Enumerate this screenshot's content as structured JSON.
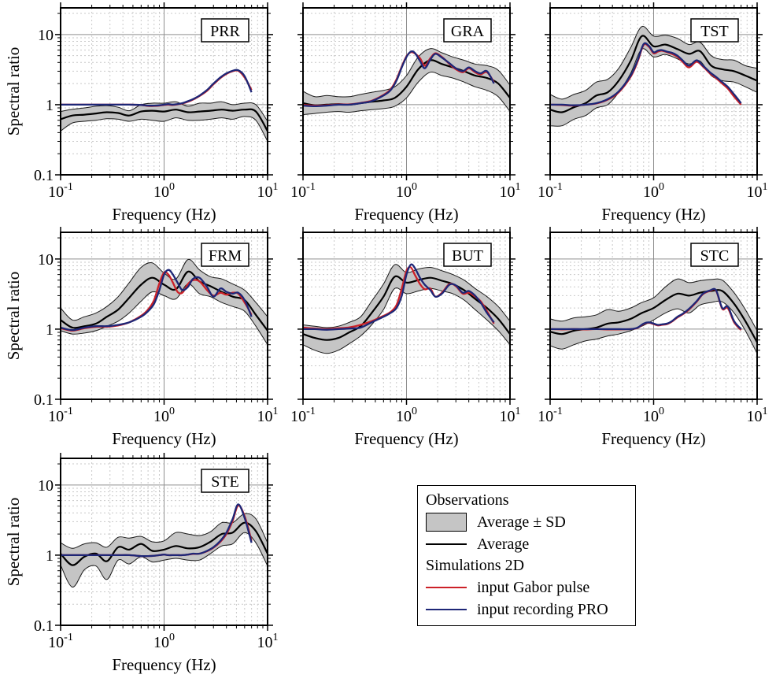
{
  "legend": {
    "sections": [
      {
        "header": "Observations",
        "items": [
          {
            "swatch": "band",
            "label": "Average ± SD"
          },
          {
            "swatch": "line-black",
            "label": "Average"
          }
        ]
      },
      {
        "header": "Simulations 2D",
        "items": [
          {
            "swatch": "line-red",
            "label": "input Gabor pulse"
          },
          {
            "swatch": "line-blue",
            "label": "input recording PRO"
          }
        ]
      }
    ]
  },
  "chart_data": {
    "type": "line",
    "subtype": "log-log spectral ratio grid, 7 subplots",
    "axes": {
      "xlabel": "Frequency (Hz)",
      "ylabel": "Spectral ratio",
      "xlim": [
        0.1,
        10
      ],
      "ylim": [
        0.1,
        24
      ],
      "grid": true,
      "x_ticks": [
        {
          "base": "10",
          "exp": "-1",
          "value": 0.1
        },
        {
          "base": "10",
          "exp": "0",
          "value": 1
        },
        {
          "base": "10",
          "exp": "1",
          "value": 10
        }
      ],
      "y_ticks": [
        {
          "label": "10",
          "value": 10
        },
        {
          "label": "1",
          "value": 1
        },
        {
          "label": "0.1",
          "value": 0.1
        }
      ]
    },
    "colors": {
      "band_fill": "#c5c5c5",
      "band_edge": "#1a1a1a",
      "average": "#000000",
      "gabor": "#cc2128",
      "pro": "#1e2777",
      "grid_major": "#8f8f8f",
      "grid_minor": "#c9c9c9",
      "frame": "#000000",
      "label_box_bg": "#ffffff"
    },
    "legend_position": "bottom-right cell of 3x3 grid",
    "obs_f": [
      0.1,
      0.13,
      0.17,
      0.22,
      0.28,
      0.36,
      0.46,
      0.6,
      0.77,
      1.0,
      1.3,
      1.7,
      2.2,
      2.8,
      3.6,
      4.6,
      6.0,
      7.7,
      10
    ],
    "sim_f": [
      0.1,
      0.13,
      0.17,
      0.22,
      0.28,
      0.36,
      0.46,
      0.6,
      0.7,
      0.8,
      0.9,
      1.0,
      1.1,
      1.2,
      1.35,
      1.5,
      1.7,
      1.9,
      2.2,
      2.6,
      3.0,
      3.5,
      4.0,
      4.6,
      5.2,
      6.0,
      7.0
    ],
    "stations": [
      {
        "id": "PRR",
        "row": 0,
        "col": 0,
        "avg": [
          0.62,
          0.7,
          0.72,
          0.75,
          0.78,
          0.76,
          0.7,
          0.8,
          0.82,
          0.8,
          0.85,
          0.78,
          0.8,
          0.82,
          0.85,
          0.82,
          0.85,
          0.8,
          0.42
        ],
        "hi": [
          0.8,
          0.86,
          0.9,
          0.95,
          0.97,
          0.92,
          0.82,
          1.0,
          1.05,
          1.05,
          1.1,
          0.95,
          1.05,
          1.05,
          1.1,
          1.0,
          1.05,
          1.0,
          0.58
        ],
        "lo": [
          0.42,
          0.55,
          0.58,
          0.6,
          0.63,
          0.62,
          0.58,
          0.62,
          0.6,
          0.58,
          0.65,
          0.6,
          0.6,
          0.62,
          0.65,
          0.62,
          0.68,
          0.6,
          0.3
        ],
        "pro": [
          1.0,
          1.0,
          1.0,
          1.0,
          1.0,
          1.0,
          1.0,
          0.99,
          0.97,
          0.97,
          0.98,
          1.0,
          1.02,
          1.0,
          1.02,
          1.05,
          1.12,
          1.2,
          1.35,
          1.62,
          2.0,
          2.45,
          2.8,
          3.05,
          3.1,
          2.55,
          1.5
        ],
        "gabor": [
          1.0,
          1.0,
          1.0,
          1.0,
          1.0,
          1.0,
          1.0,
          0.99,
          0.96,
          0.96,
          0.97,
          0.99,
          1.0,
          0.99,
          1.01,
          1.04,
          1.1,
          1.18,
          1.33,
          1.58,
          1.95,
          2.4,
          2.75,
          3.0,
          3.05,
          2.45,
          1.62
        ]
      },
      {
        "id": "GRA",
        "row": 0,
        "col": 1,
        "avg": [
          1.05,
          0.98,
          1.0,
          1.02,
          1.0,
          1.05,
          1.1,
          1.15,
          1.25,
          1.8,
          3.2,
          4.3,
          3.8,
          3.4,
          3.0,
          2.6,
          2.4,
          2.0,
          1.25
        ],
        "hi": [
          1.55,
          1.3,
          1.35,
          1.3,
          1.3,
          1.4,
          1.5,
          1.6,
          1.8,
          2.6,
          4.8,
          6.3,
          5.5,
          4.8,
          4.3,
          3.8,
          3.6,
          3.1,
          1.9
        ],
        "lo": [
          0.72,
          0.75,
          0.78,
          0.8,
          0.78,
          0.82,
          0.85,
          0.88,
          0.95,
          1.25,
          2.1,
          2.9,
          2.6,
          2.4,
          2.1,
          1.8,
          1.6,
          1.3,
          0.8
        ],
        "pro": [
          0.97,
          0.95,
          0.97,
          1.0,
          1.0,
          1.05,
          1.12,
          1.35,
          1.6,
          2.2,
          3.4,
          4.8,
          5.7,
          5.5,
          4.2,
          3.3,
          4.4,
          5.3,
          4.7,
          3.9,
          3.3,
          3.0,
          3.4,
          3.0,
          2.8,
          3.0,
          2.0
        ],
        "gabor": [
          0.99,
          0.97,
          0.98,
          1.01,
          1.01,
          1.06,
          1.14,
          1.38,
          1.65,
          2.3,
          3.5,
          4.9,
          5.6,
          5.4,
          4.6,
          3.6,
          4.6,
          5.4,
          4.8,
          3.8,
          3.2,
          2.9,
          3.3,
          2.9,
          2.7,
          2.9,
          2.1
        ]
      },
      {
        "id": "TST",
        "row": 0,
        "col": 2,
        "avg": [
          0.85,
          0.78,
          0.92,
          1.05,
          1.35,
          1.5,
          2.2,
          4.2,
          9.5,
          6.8,
          7.2,
          6.2,
          5.3,
          5.8,
          3.6,
          3.2,
          3.0,
          2.6,
          2.2
        ],
        "hi": [
          1.4,
          1.2,
          1.4,
          1.6,
          2.1,
          2.3,
          3.3,
          6.5,
          13.0,
          9.5,
          9.8,
          8.8,
          7.2,
          7.8,
          5.0,
          4.4,
          4.3,
          3.6,
          3.3
        ],
        "lo": [
          0.5,
          0.5,
          0.62,
          0.7,
          0.9,
          1.0,
          1.5,
          2.8,
          6.2,
          4.8,
          5.2,
          4.5,
          3.8,
          4.2,
          2.6,
          2.2,
          2.1,
          1.8,
          1.5
        ],
        "pro": [
          1.0,
          1.0,
          0.98,
          1.0,
          1.05,
          1.2,
          1.55,
          2.6,
          4.3,
          7.3,
          6.9,
          5.6,
          5.9,
          6.0,
          5.7,
          5.5,
          5.0,
          4.3,
          3.6,
          4.3,
          3.6,
          2.9,
          2.5,
          2.1,
          1.8,
          1.4,
          1.05
        ],
        "gabor": [
          1.0,
          0.99,
          0.97,
          1.0,
          1.04,
          1.18,
          1.5,
          2.5,
          4.1,
          7.1,
          6.7,
          5.4,
          5.7,
          5.9,
          5.6,
          5.3,
          4.8,
          4.1,
          3.4,
          4.1,
          3.5,
          2.8,
          2.4,
          2.0,
          1.7,
          1.3,
          1.0
        ]
      },
      {
        "id": "FRM",
        "row": 1,
        "col": 0,
        "avg": [
          1.35,
          1.05,
          1.1,
          1.2,
          1.5,
          1.9,
          2.8,
          4.3,
          5.4,
          4.3,
          3.7,
          6.6,
          4.8,
          4.1,
          3.4,
          2.9,
          2.6,
          1.6,
          0.95
        ],
        "hi": [
          2.0,
          1.35,
          1.5,
          1.7,
          2.1,
          2.9,
          4.6,
          7.6,
          8.8,
          6.3,
          5.2,
          9.8,
          7.0,
          5.6,
          5.2,
          4.4,
          3.6,
          2.4,
          1.5
        ],
        "lo": [
          0.95,
          0.85,
          0.88,
          0.95,
          1.1,
          1.3,
          1.7,
          2.5,
          3.4,
          3.0,
          2.7,
          4.4,
          3.2,
          2.9,
          2.4,
          2.1,
          1.8,
          1.1,
          0.6
        ],
        "pro": [
          1.05,
          0.97,
          1.05,
          1.1,
          1.1,
          1.15,
          1.25,
          1.5,
          1.8,
          2.3,
          3.6,
          6.0,
          7.0,
          6.2,
          4.6,
          3.6,
          4.0,
          5.2,
          5.4,
          4.0,
          2.9,
          3.8,
          3.4,
          3.2,
          3.3,
          2.6,
          1.5
        ],
        "gabor": [
          1.03,
          0.95,
          1.03,
          1.08,
          1.08,
          1.13,
          1.25,
          1.55,
          1.9,
          2.6,
          4.5,
          6.4,
          6.0,
          4.8,
          3.4,
          3.3,
          4.4,
          5.0,
          4.8,
          3.6,
          3.0,
          3.3,
          3.1,
          3.3,
          3.2,
          2.4,
          1.6
        ]
      },
      {
        "id": "BUT",
        "row": 1,
        "col": 1,
        "avg": [
          0.85,
          0.75,
          0.7,
          0.75,
          0.9,
          1.1,
          1.7,
          2.9,
          5.6,
          4.6,
          5.0,
          5.4,
          4.9,
          4.4,
          3.6,
          2.7,
          2.0,
          1.4,
          0.85
        ],
        "hi": [
          1.15,
          1.1,
          1.05,
          1.1,
          1.25,
          1.5,
          2.5,
          4.4,
          8.3,
          6.4,
          7.2,
          7.6,
          6.8,
          6.0,
          5.0,
          3.8,
          2.9,
          2.1,
          1.3
        ],
        "lo": [
          0.6,
          0.5,
          0.45,
          0.5,
          0.62,
          0.8,
          1.15,
          1.9,
          3.8,
          3.2,
          3.5,
          3.8,
          3.5,
          3.2,
          2.6,
          1.9,
          1.35,
          0.95,
          0.6
        ],
        "pro": [
          1.0,
          1.0,
          0.98,
          1.0,
          1.02,
          1.05,
          1.25,
          1.5,
          1.7,
          2.0,
          3.0,
          6.0,
          8.3,
          7.5,
          5.4,
          4.3,
          3.6,
          2.9,
          3.2,
          4.3,
          4.2,
          3.3,
          3.5,
          3.0,
          2.4,
          1.7,
          1.25
        ],
        "gabor": [
          1.05,
          1.02,
          1.0,
          1.03,
          1.06,
          1.15,
          1.3,
          1.55,
          1.75,
          2.2,
          3.8,
          6.8,
          7.6,
          6.0,
          4.4,
          3.7,
          3.8,
          2.9,
          3.3,
          4.4,
          4.1,
          3.2,
          3.3,
          2.9,
          2.5,
          1.8,
          1.2
        ]
      },
      {
        "id": "STC",
        "row": 1,
        "col": 2,
        "avg": [
          0.92,
          0.85,
          0.95,
          1.0,
          1.05,
          1.2,
          1.25,
          1.4,
          1.7,
          2.0,
          2.6,
          3.2,
          3.0,
          3.3,
          3.5,
          3.5,
          2.3,
          1.3,
          0.65
        ],
        "hi": [
          1.4,
          1.3,
          1.45,
          1.5,
          1.6,
          1.9,
          1.8,
          2.0,
          2.4,
          2.8,
          4.0,
          5.2,
          4.6,
          4.9,
          5.1,
          5.0,
          3.3,
          1.9,
          0.95
        ],
        "lo": [
          0.58,
          0.52,
          0.6,
          0.68,
          0.72,
          0.8,
          0.85,
          0.95,
          1.1,
          1.35,
          1.7,
          1.95,
          1.7,
          2.2,
          2.4,
          2.45,
          1.7,
          0.95,
          0.45
        ],
        "pro": [
          1.0,
          1.0,
          1.0,
          1.0,
          1.0,
          1.0,
          1.0,
          1.0,
          1.05,
          1.2,
          1.25,
          1.2,
          1.15,
          1.17,
          1.2,
          1.3,
          1.5,
          1.65,
          1.95,
          2.5,
          3.2,
          3.55,
          3.6,
          2.0,
          2.1,
          1.3,
          1.0
        ],
        "gabor": [
          1.0,
          0.99,
          1.0,
          0.99,
          1.0,
          0.99,
          0.99,
          1.0,
          1.04,
          1.18,
          1.23,
          1.18,
          1.13,
          1.15,
          1.18,
          1.28,
          1.47,
          1.62,
          1.9,
          2.45,
          3.15,
          3.5,
          3.55,
          1.95,
          2.0,
          1.25,
          0.97
        ]
      },
      {
        "id": "STE",
        "row": 2,
        "col": 0,
        "avg": [
          1.05,
          0.72,
          0.95,
          1.05,
          0.82,
          1.3,
          1.2,
          1.45,
          1.15,
          1.2,
          1.35,
          1.25,
          1.3,
          1.55,
          2.0,
          2.1,
          2.9,
          2.2,
          1.05
        ],
        "hi": [
          1.5,
          1.25,
          1.45,
          1.5,
          1.3,
          1.8,
          1.75,
          1.85,
          1.55,
          1.6,
          2.1,
          2.0,
          1.9,
          2.15,
          2.9,
          2.9,
          3.9,
          3.3,
          1.5
        ],
        "lo": [
          0.72,
          0.35,
          0.62,
          0.7,
          0.45,
          0.85,
          0.75,
          0.95,
          0.8,
          0.85,
          0.9,
          0.85,
          0.85,
          1.05,
          1.35,
          1.45,
          2.1,
          1.5,
          0.7
        ],
        "pro": [
          1.0,
          1.0,
          1.0,
          1.0,
          1.0,
          1.0,
          1.0,
          0.97,
          0.97,
          0.98,
          1.0,
          1.02,
          1.0,
          1.0,
          1.0,
          1.0,
          1.02,
          1.05,
          1.05,
          1.15,
          1.3,
          1.6,
          2.1,
          3.3,
          5.3,
          3.4,
          1.5
        ],
        "gabor": [
          1.0,
          1.0,
          1.0,
          1.0,
          1.0,
          1.0,
          1.0,
          0.97,
          0.97,
          0.98,
          1.0,
          1.02,
          1.0,
          1.0,
          1.0,
          1.0,
          1.02,
          1.04,
          1.05,
          1.14,
          1.28,
          1.55,
          2.0,
          3.1,
          5.1,
          3.6,
          1.6
        ]
      }
    ]
  }
}
